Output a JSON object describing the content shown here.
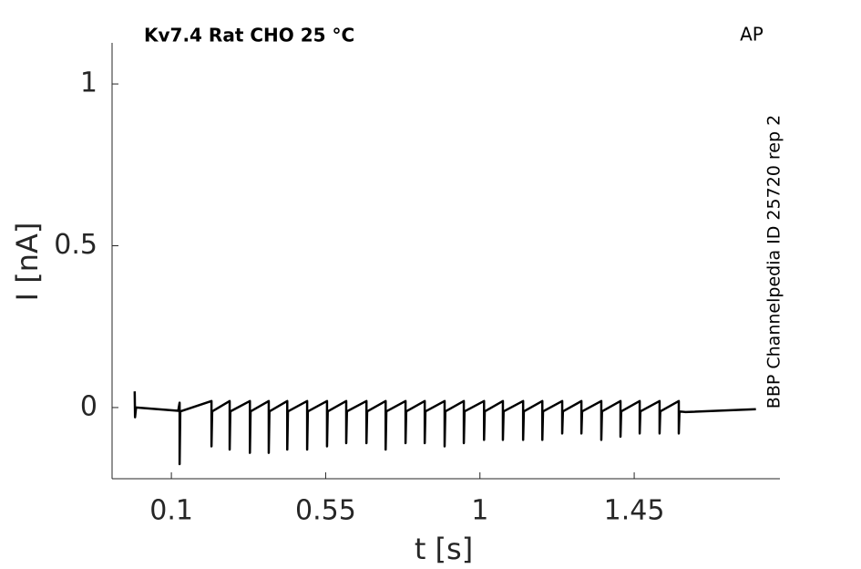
{
  "chart_data": {
    "type": "line",
    "title": "Kv7.4  Rat  CHO  25 °C",
    "annotation": "AP",
    "side_note": "BBP Channelpedia ID 25720 rep 2",
    "x_label": "t [s]",
    "y_label": "I [nA]",
    "color": "#000000",
    "xlim": [
      -0.073,
      1.875
    ],
    "ylim": [
      -0.22,
      1.127
    ],
    "xticks": [
      0.1,
      0.55,
      1,
      1.45
    ],
    "yticks": [
      0,
      0.5,
      1
    ],
    "x": [
      -0.007,
      -0.006,
      -0.003,
      0.12,
      0.124,
      0.124,
      0.126,
      0.217,
      0.217,
      0.219,
      0.27,
      0.27,
      0.272,
      0.329,
      0.329,
      0.331,
      0.384,
      0.384,
      0.386,
      0.438,
      0.438,
      0.44,
      0.496,
      0.496,
      0.498,
      0.554,
      0.554,
      0.556,
      0.61,
      0.61,
      0.612,
      0.669,
      0.669,
      0.671,
      0.725,
      0.725,
      0.727,
      0.783,
      0.783,
      0.785,
      0.839,
      0.839,
      0.841,
      0.897,
      0.897,
      0.899,
      0.953,
      0.953,
      0.955,
      1.012,
      1.012,
      1.014,
      1.067,
      1.067,
      1.069,
      1.126,
      1.126,
      1.128,
      1.182,
      1.182,
      1.184,
      1.24,
      1.24,
      1.242,
      1.296,
      1.296,
      1.298,
      1.354,
      1.354,
      1.356,
      1.41,
      1.41,
      1.412,
      1.466,
      1.466,
      1.468,
      1.524,
      1.524,
      1.526,
      1.58,
      1.58,
      1.582,
      1.6,
      1.805
    ],
    "values": [
      0.05,
      -0.03,
      0.0,
      -0.01,
      0.015,
      -0.175,
      -0.012,
      0.02,
      -0.12,
      -0.012,
      0.02,
      -0.13,
      -0.012,
      0.02,
      -0.14,
      -0.012,
      0.02,
      -0.14,
      -0.012,
      0.02,
      -0.13,
      -0.012,
      0.02,
      -0.13,
      -0.012,
      0.02,
      -0.12,
      -0.012,
      0.02,
      -0.11,
      -0.012,
      0.02,
      -0.11,
      -0.012,
      0.02,
      -0.13,
      -0.012,
      0.02,
      -0.11,
      -0.012,
      0.02,
      -0.11,
      -0.012,
      0.02,
      -0.12,
      -0.012,
      0.02,
      -0.11,
      -0.012,
      0.02,
      -0.1,
      -0.012,
      0.02,
      -0.1,
      -0.012,
      0.02,
      -0.1,
      -0.012,
      0.02,
      -0.1,
      -0.012,
      0.02,
      -0.08,
      -0.012,
      0.02,
      -0.08,
      -0.012,
      0.02,
      -0.1,
      -0.012,
      0.02,
      -0.09,
      -0.012,
      0.02,
      -0.08,
      -0.012,
      0.02,
      -0.08,
      -0.012,
      0.02,
      -0.08,
      -0.012,
      -0.014,
      -0.005
    ]
  }
}
